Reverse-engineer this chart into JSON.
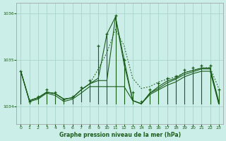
{
  "title": "Graphe pression niveau de la mer (hPa)",
  "bg_color": "#cceee8",
  "grid_color": "#aad4cc",
  "line_color": "#1a5c1a",
  "xlim": [
    -0.5,
    23.5
  ],
  "ylim": [
    1033.62,
    1036.22
  ],
  "yticks": [
    1034,
    1035,
    1036
  ],
  "xticks": [
    0,
    1,
    2,
    3,
    4,
    5,
    6,
    7,
    8,
    9,
    10,
    11,
    12,
    13,
    14,
    15,
    16,
    17,
    18,
    19,
    20,
    21,
    22,
    23
  ],
  "spike_tops": [
    1034.75,
    1034.1,
    1034.2,
    1034.35,
    1034.3,
    1034.15,
    1034.2,
    1034.4,
    1034.55,
    1035.3,
    1035.55,
    1035.95,
    1035.0,
    1034.3,
    1034.1,
    1034.35,
    1034.5,
    1034.6,
    1034.65,
    1034.78,
    1034.82,
    1034.87,
    1034.87,
    1034.35
  ],
  "spike_bots": [
    1034.05,
    1034.05,
    1034.05,
    1034.05,
    1034.05,
    1034.05,
    1034.05,
    1034.1,
    1034.1,
    1034.05,
    1034.05,
    1034.05,
    1034.05,
    1034.05,
    1034.05,
    1034.05,
    1034.05,
    1034.05,
    1034.05,
    1034.05,
    1034.05,
    1034.05,
    1034.05,
    1034.05
  ],
  "trend_dotted": [
    1034.75,
    1034.12,
    1034.18,
    1034.3,
    1034.27,
    1034.15,
    1034.18,
    1034.35,
    1034.48,
    1034.8,
    1035.15,
    1035.65,
    1035.3,
    1034.6,
    1034.38,
    1034.42,
    1034.52,
    1034.58,
    1034.63,
    1034.72,
    1034.77,
    1034.82,
    1034.83,
    1034.38
  ],
  "trend_solid1": [
    1034.75,
    1034.12,
    1034.18,
    1034.3,
    1034.27,
    1034.15,
    1034.18,
    1034.35,
    1034.48,
    1034.6,
    1035.55,
    1035.92,
    1035.0,
    1034.12,
    1034.05,
    1034.28,
    1034.42,
    1034.54,
    1034.6,
    1034.72,
    1034.77,
    1034.82,
    1034.82,
    1034.1
  ],
  "trend_solid2": [
    1034.75,
    1034.12,
    1034.18,
    1034.3,
    1034.27,
    1034.15,
    1034.18,
    1034.35,
    1034.48,
    1034.55,
    1034.55,
    1035.92,
    1034.9,
    1034.12,
    1034.05,
    1034.28,
    1034.38,
    1034.5,
    1034.58,
    1034.68,
    1034.74,
    1034.8,
    1034.8,
    1034.05
  ],
  "trend_solid3": [
    1034.75,
    1034.1,
    1034.15,
    1034.28,
    1034.23,
    1034.1,
    1034.15,
    1034.28,
    1034.42,
    1034.42,
    1034.42,
    1034.42,
    1034.42,
    1034.12,
    1034.05,
    1034.25,
    1034.35,
    1034.45,
    1034.52,
    1034.63,
    1034.7,
    1034.75,
    1034.75,
    1034.05
  ]
}
